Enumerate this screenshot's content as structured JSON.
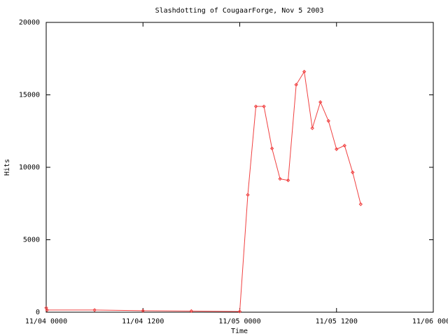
{
  "chart_data": {
    "type": "line",
    "title": "Slashdotting of CougaarForge, Nov 5 2003",
    "xlabel": "Time",
    "ylabel": "Hits",
    "xlim": [
      0,
      48
    ],
    "xticks": [
      {
        "value": 0,
        "label": "11/04 0000"
      },
      {
        "value": 12,
        "label": "11/04 1200"
      },
      {
        "value": 24,
        "label": "11/05 0000"
      },
      {
        "value": 36,
        "label": "11/05 1200"
      },
      {
        "value": 48,
        "label": "11/06 0000"
      }
    ],
    "ylim": [
      0,
      20000
    ],
    "yticks": [
      0,
      5000,
      10000,
      15000,
      20000
    ],
    "series": [
      {
        "color": "#f04040",
        "x": [
          0,
          0.1,
          6,
          12,
          18,
          24,
          25,
          26,
          27,
          28,
          29,
          30,
          31,
          32,
          33,
          34,
          35,
          36,
          37,
          38,
          39
        ],
        "values": [
          300,
          150,
          150,
          100,
          80,
          50,
          8100,
          14200,
          14200,
          11300,
          9200,
          9100,
          15700,
          16600,
          12700,
          14500,
          13200,
          11250,
          11500,
          9650,
          7450
        ]
      }
    ]
  }
}
